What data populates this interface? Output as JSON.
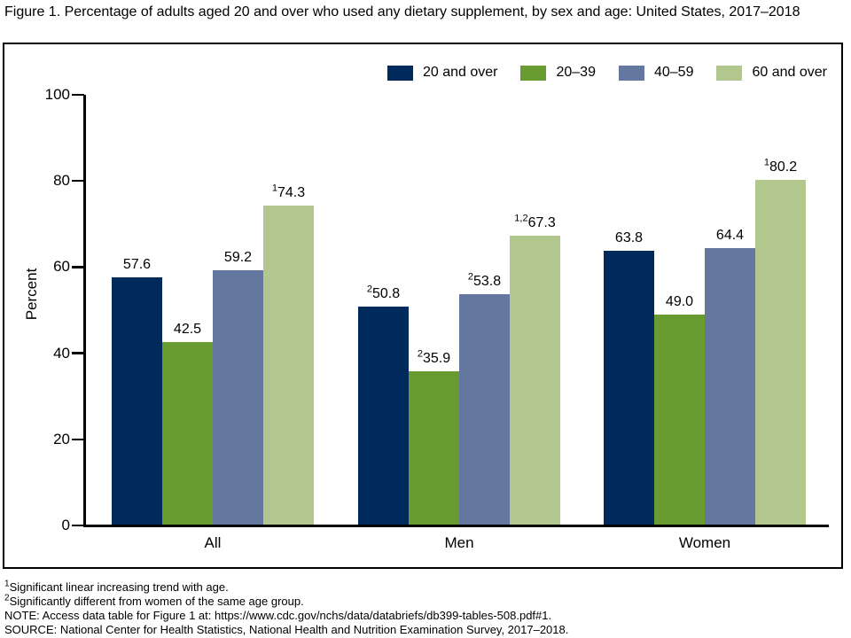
{
  "title": "Figure 1. Percentage of adults aged 20 and over who used any dietary supplement, by sex and age: United States, 2017–2018",
  "chart_data": {
    "type": "bar",
    "title": "",
    "xlabel": "",
    "ylabel": "Percent",
    "ylim": [
      0,
      100
    ],
    "yticks": [
      0,
      20,
      40,
      60,
      80,
      100
    ],
    "grid": false,
    "legend_position": "top-right",
    "categories": [
      "All",
      "Men",
      "Women"
    ],
    "series": [
      {
        "name": "20 and over",
        "color": "#002A5C",
        "values": [
          57.6,
          50.8,
          63.8
        ],
        "value_labels": [
          "57.6",
          "50.8",
          "63.8"
        ],
        "superscripts": [
          "",
          "2",
          ""
        ]
      },
      {
        "name": "20–39",
        "color": "#699C30",
        "values": [
          42.5,
          35.9,
          49.0
        ],
        "value_labels": [
          "42.5",
          "35.9",
          "49.0"
        ],
        "superscripts": [
          "",
          "2",
          ""
        ]
      },
      {
        "name": "40–59",
        "color": "#64779E",
        "values": [
          59.2,
          53.8,
          64.4
        ],
        "value_labels": [
          "59.2",
          "53.8",
          "64.4"
        ],
        "superscripts": [
          "",
          "2",
          ""
        ]
      },
      {
        "name": "60 and over",
        "color": "#B2C78E",
        "values": [
          74.3,
          67.3,
          80.2
        ],
        "value_labels": [
          "74.3",
          "67.3",
          "80.2"
        ],
        "superscripts": [
          "1",
          "1,2",
          "1"
        ]
      }
    ]
  },
  "footnotes": [
    {
      "sup": "1",
      "text": "Significant linear increasing trend with age."
    },
    {
      "sup": "2",
      "text": "Significantly different from women of the same age group."
    },
    {
      "sup": "",
      "text": "NOTE: Access data table for Figure 1 at: https://www.cdc.gov/nchs/data/databriefs/db399-tables-508.pdf#1."
    },
    {
      "sup": "",
      "text": "SOURCE: National Center for Health Statistics, National Health and Nutrition Examination Survey, 2017–2018."
    }
  ]
}
